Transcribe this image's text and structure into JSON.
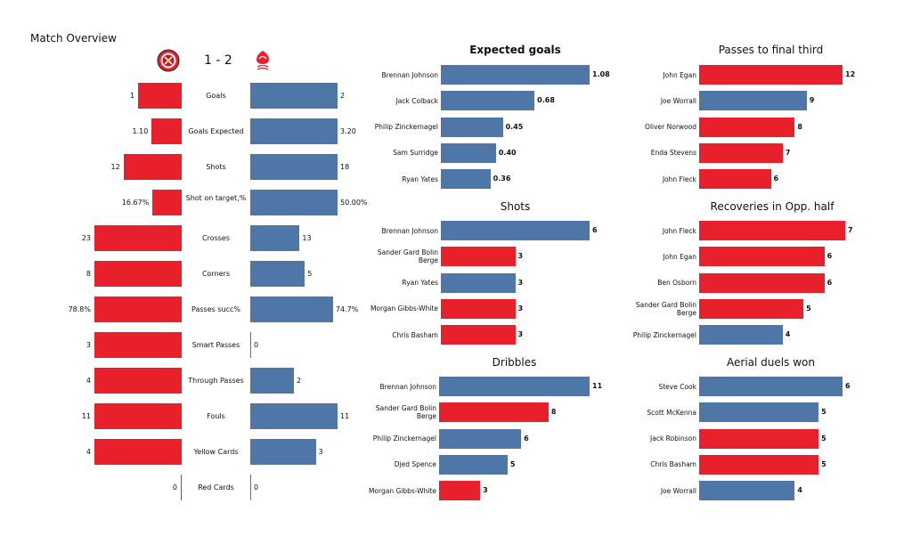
{
  "title": "Match Overview",
  "score": "1 - 2",
  "colors": {
    "home": "#e8202c",
    "away": "#4e77a8"
  },
  "icons": {
    "home_logo": "sheffield-united-crest-icon",
    "away_logo": "nottingham-forest-crest-icon"
  },
  "chart_data": [
    {
      "type": "bar",
      "orientation": "diverging-horizontal",
      "categories": [
        "Goals",
        "Goals Expected",
        "Shots",
        "Shot on target,%",
        "Crosses",
        "Corners",
        "Passes succ%",
        "Smart Passes",
        "Through Passes",
        "Fouls",
        "Yellow Cards",
        "Red Cards"
      ],
      "series": [
        {
          "values": [
            1,
            1.1,
            12,
            16.67,
            23,
            8,
            78.8,
            3,
            4,
            11,
            4,
            0
          ],
          "labels": [
            "1",
            "1.10",
            "12",
            "16.67%",
            "23",
            "8",
            "78.8%",
            "3",
            "4",
            "11",
            "4",
            "0"
          ]
        },
        {
          "values": [
            2,
            3.2,
            18,
            50.0,
            13,
            5,
            74.7,
            0,
            2,
            11,
            3,
            0
          ],
          "labels": [
            "2",
            "3.20",
            "18",
            "50.00%",
            "13",
            "5",
            "74.7%",
            "0",
            "2",
            "11",
            "3",
            "0"
          ]
        }
      ]
    },
    {
      "type": "bar",
      "orientation": "horizontal",
      "title": "Expected goals",
      "categories": [
        "Brennan Johnson",
        "Jack Colback",
        "Philip Zinckernagel",
        "Sam Surridge",
        "Ryan Yates"
      ],
      "values": [
        1.08,
        0.68,
        0.45,
        0.4,
        0.36
      ],
      "labels": [
        "1.08",
        "0.68",
        "0.45",
        "0.40",
        "0.36"
      ],
      "teams": [
        "away",
        "away",
        "away",
        "away",
        "away"
      ]
    },
    {
      "type": "bar",
      "orientation": "horizontal",
      "title": "Shots",
      "categories": [
        "Brennan Johnson",
        "Sander Gard Bolin Berge",
        "Ryan Yates",
        "Morgan Gibbs-White",
        "Chris Basham"
      ],
      "values": [
        6,
        3,
        3,
        3,
        3
      ],
      "labels": [
        "6",
        "3",
        "3",
        "3",
        "3"
      ],
      "teams": [
        "away",
        "home",
        "away",
        "home",
        "home"
      ]
    },
    {
      "type": "bar",
      "orientation": "horizontal",
      "title": "Dribbles",
      "categories": [
        "Brennan Johnson",
        "Sander Gard Bolin Berge",
        "Philip Zinckernagel",
        "Djed Spence",
        "Morgan Gibbs-White"
      ],
      "values": [
        11,
        8,
        6,
        5,
        3
      ],
      "labels": [
        "11",
        "8",
        "6",
        "5",
        "3"
      ],
      "teams": [
        "away",
        "home",
        "away",
        "away",
        "home"
      ]
    },
    {
      "type": "bar",
      "orientation": "horizontal",
      "title": "Passes to final third",
      "categories": [
        "John Egan",
        "Joe Worrall",
        "Oliver Norwood",
        "Enda Stevens",
        "John Fleck"
      ],
      "values": [
        12,
        9,
        8,
        7,
        6
      ],
      "labels": [
        "12",
        "9",
        "8",
        "7",
        "6"
      ],
      "teams": [
        "home",
        "away",
        "home",
        "home",
        "home"
      ]
    },
    {
      "type": "bar",
      "orientation": "horizontal",
      "title": "Recoveries in Opp. half",
      "categories": [
        "John Fleck",
        "John Egan",
        "Ben Osborn",
        "Sander Gard Bolin Berge",
        "Philip Zinckernagel"
      ],
      "values": [
        7,
        6,
        6,
        5,
        4
      ],
      "labels": [
        "7",
        "6",
        "6",
        "5",
        "4"
      ],
      "teams": [
        "home",
        "home",
        "home",
        "home",
        "away"
      ]
    },
    {
      "type": "bar",
      "orientation": "horizontal",
      "title": "Aerial duels won",
      "categories": [
        "Steve Cook",
        "Scott McKenna",
        "Jack Robinson",
        "Chris Basham",
        "Joe Worrall"
      ],
      "values": [
        6,
        5,
        5,
        5,
        4
      ],
      "labels": [
        "6",
        "5",
        "5",
        "5",
        "4"
      ],
      "teams": [
        "away",
        "away",
        "home",
        "home",
        "away"
      ]
    }
  ]
}
